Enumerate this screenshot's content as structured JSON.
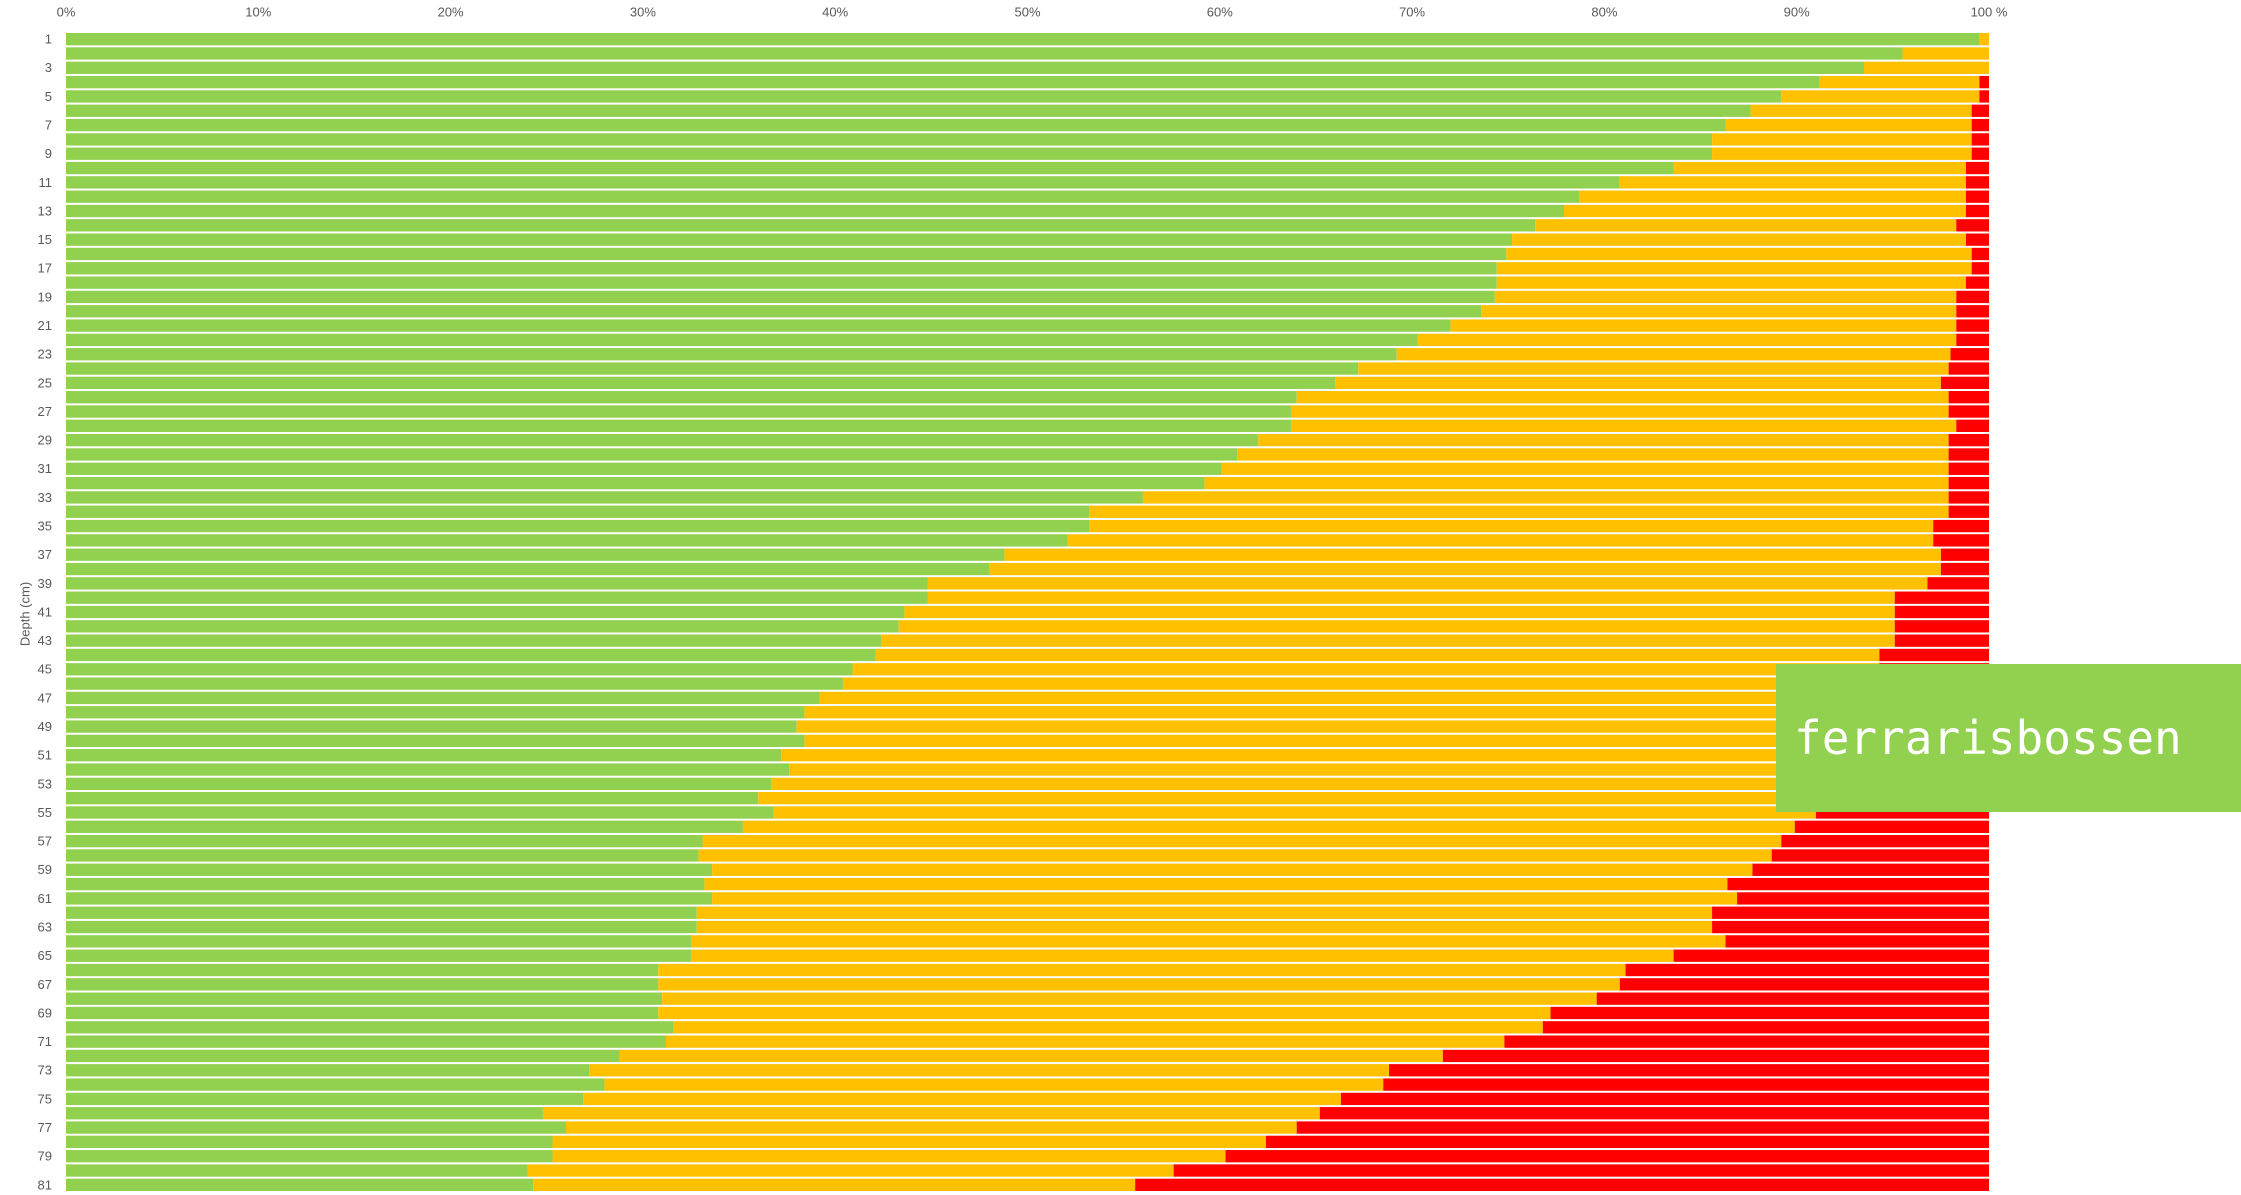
{
  "chart_data": {
    "type": "stacked-barh",
    "y_label": "Depth (cm)",
    "annotation": "ferrarisbossen",
    "categories": [
      "1",
      null,
      "3",
      null,
      "5",
      null,
      "7",
      null,
      "9",
      null,
      "11",
      null,
      "13",
      null,
      "15",
      null,
      "17",
      null,
      "19",
      null,
      "21",
      null,
      "23",
      null,
      "25",
      null,
      "27",
      null,
      "29",
      null,
      "31",
      null,
      "33",
      null,
      "35",
      null,
      "37",
      null,
      "39",
      null,
      "41",
      null,
      "43",
      null,
      "45",
      null,
      "47",
      null,
      "49",
      null,
      "51",
      null,
      "53",
      null,
      "55",
      null,
      "57",
      null,
      "59",
      null,
      "61",
      null,
      "63",
      null,
      "65",
      null,
      "67",
      null,
      "69",
      null,
      "71",
      null,
      "73",
      null,
      "75",
      null,
      "77",
      null,
      "79",
      null,
      "81"
    ],
    "series": [
      {
        "color": "#92d050",
        "values": [
          99.5,
          95.5,
          93.5,
          91.2,
          89.2,
          87.6,
          86.3,
          85.6,
          85.6,
          83.6,
          80.8,
          78.7,
          77.9,
          76.4,
          75.2,
          74.9,
          74.4,
          74.4,
          74.3,
          73.6,
          72.0,
          70.3,
          69.2,
          67.2,
          66.0,
          64.0,
          63.7,
          63.7,
          62.0,
          60.9,
          60.1,
          59.2,
          56.0,
          53.2,
          53.2,
          52.1,
          48.8,
          48.0,
          44.8,
          44.8,
          43.6,
          43.3,
          42.4,
          42.1,
          40.9,
          40.4,
          39.2,
          38.4,
          38.0,
          38.4,
          37.2,
          37.6,
          36.7,
          36.0,
          36.8,
          35.2,
          33.1,
          32.9,
          33.6,
          33.2,
          33.6,
          32.8,
          32.8,
          32.5,
          32.5,
          30.8,
          30.8,
          31.0,
          30.8,
          31.6,
          31.2,
          28.8,
          27.2,
          28.0,
          26.9,
          24.8,
          26.0,
          25.3,
          25.3,
          24.0,
          24.3
        ]
      },
      {
        "color": "#ffc000",
        "values": [
          0.5,
          4.5,
          6.5,
          8.3,
          10.3,
          11.5,
          12.8,
          13.5,
          13.5,
          15.2,
          18.0,
          20.1,
          20.9,
          21.9,
          23.6,
          24.2,
          24.7,
          24.4,
          24.0,
          24.7,
          26.3,
          28.0,
          28.8,
          30.7,
          31.5,
          33.9,
          34.2,
          34.6,
          35.9,
          37.0,
          37.8,
          38.7,
          41.9,
          44.7,
          43.9,
          45.0,
          48.7,
          49.5,
          52.0,
          50.3,
          51.5,
          51.8,
          52.7,
          52.2,
          53.4,
          53.6,
          54.3,
          54.6,
          54.5,
          53.9,
          54.8,
          54.2,
          54.8,
          55.2,
          54.2,
          54.7,
          56.1,
          55.8,
          54.1,
          53.2,
          53.3,
          52.8,
          52.8,
          53.8,
          51.1,
          50.3,
          50.0,
          48.6,
          46.4,
          45.2,
          43.6,
          42.8,
          41.6,
          40.5,
          39.4,
          40.4,
          38.0,
          37.1,
          35.0,
          33.6,
          31.3
        ]
      },
      {
        "color": "#ff0000",
        "values": [
          0,
          0,
          0,
          0.5,
          0.5,
          0.9,
          0.9,
          0.9,
          0.9,
          1.2,
          1.2,
          1.2,
          1.2,
          1.7,
          1.2,
          0.9,
          0.9,
          1.2,
          1.7,
          1.7,
          1.7,
          1.7,
          2.0,
          2.1,
          2.5,
          2.1,
          2.1,
          1.7,
          2.1,
          2.1,
          2.1,
          2.1,
          2.1,
          2.1,
          2.9,
          2.9,
          2.5,
          2.5,
          3.2,
          4.9,
          4.9,
          4.9,
          4.9,
          5.7,
          5.7,
          6.0,
          6.5,
          7.0,
          7.5,
          7.7,
          8.0,
          8.2,
          8.5,
          8.8,
          9.0,
          10.1,
          10.8,
          11.3,
          12.3,
          13.6,
          13.1,
          14.4,
          14.4,
          13.7,
          16.4,
          18.9,
          19.2,
          20.4,
          22.8,
          23.2,
          25.2,
          28.4,
          31.2,
          31.5,
          33.7,
          34.8,
          36.0,
          37.6,
          39.7,
          42.4,
          44.4
        ]
      }
    ],
    "xlim": [
      0,
      100
    ],
    "xticks": [
      {
        "value": 0,
        "label": "0%"
      },
      {
        "value": 10,
        "label": "10%"
      },
      {
        "value": 20,
        "label": "20%"
      },
      {
        "value": 30,
        "label": "30%"
      },
      {
        "value": 40,
        "label": "40%"
      },
      {
        "value": 50,
        "label": "50%"
      },
      {
        "value": 60,
        "label": "60%"
      },
      {
        "value": 70,
        "label": "70%"
      },
      {
        "value": 80,
        "label": "80%"
      },
      {
        "value": 90,
        "label": "90%"
      },
      {
        "value": 100,
        "label": "100 %"
      }
    ]
  }
}
